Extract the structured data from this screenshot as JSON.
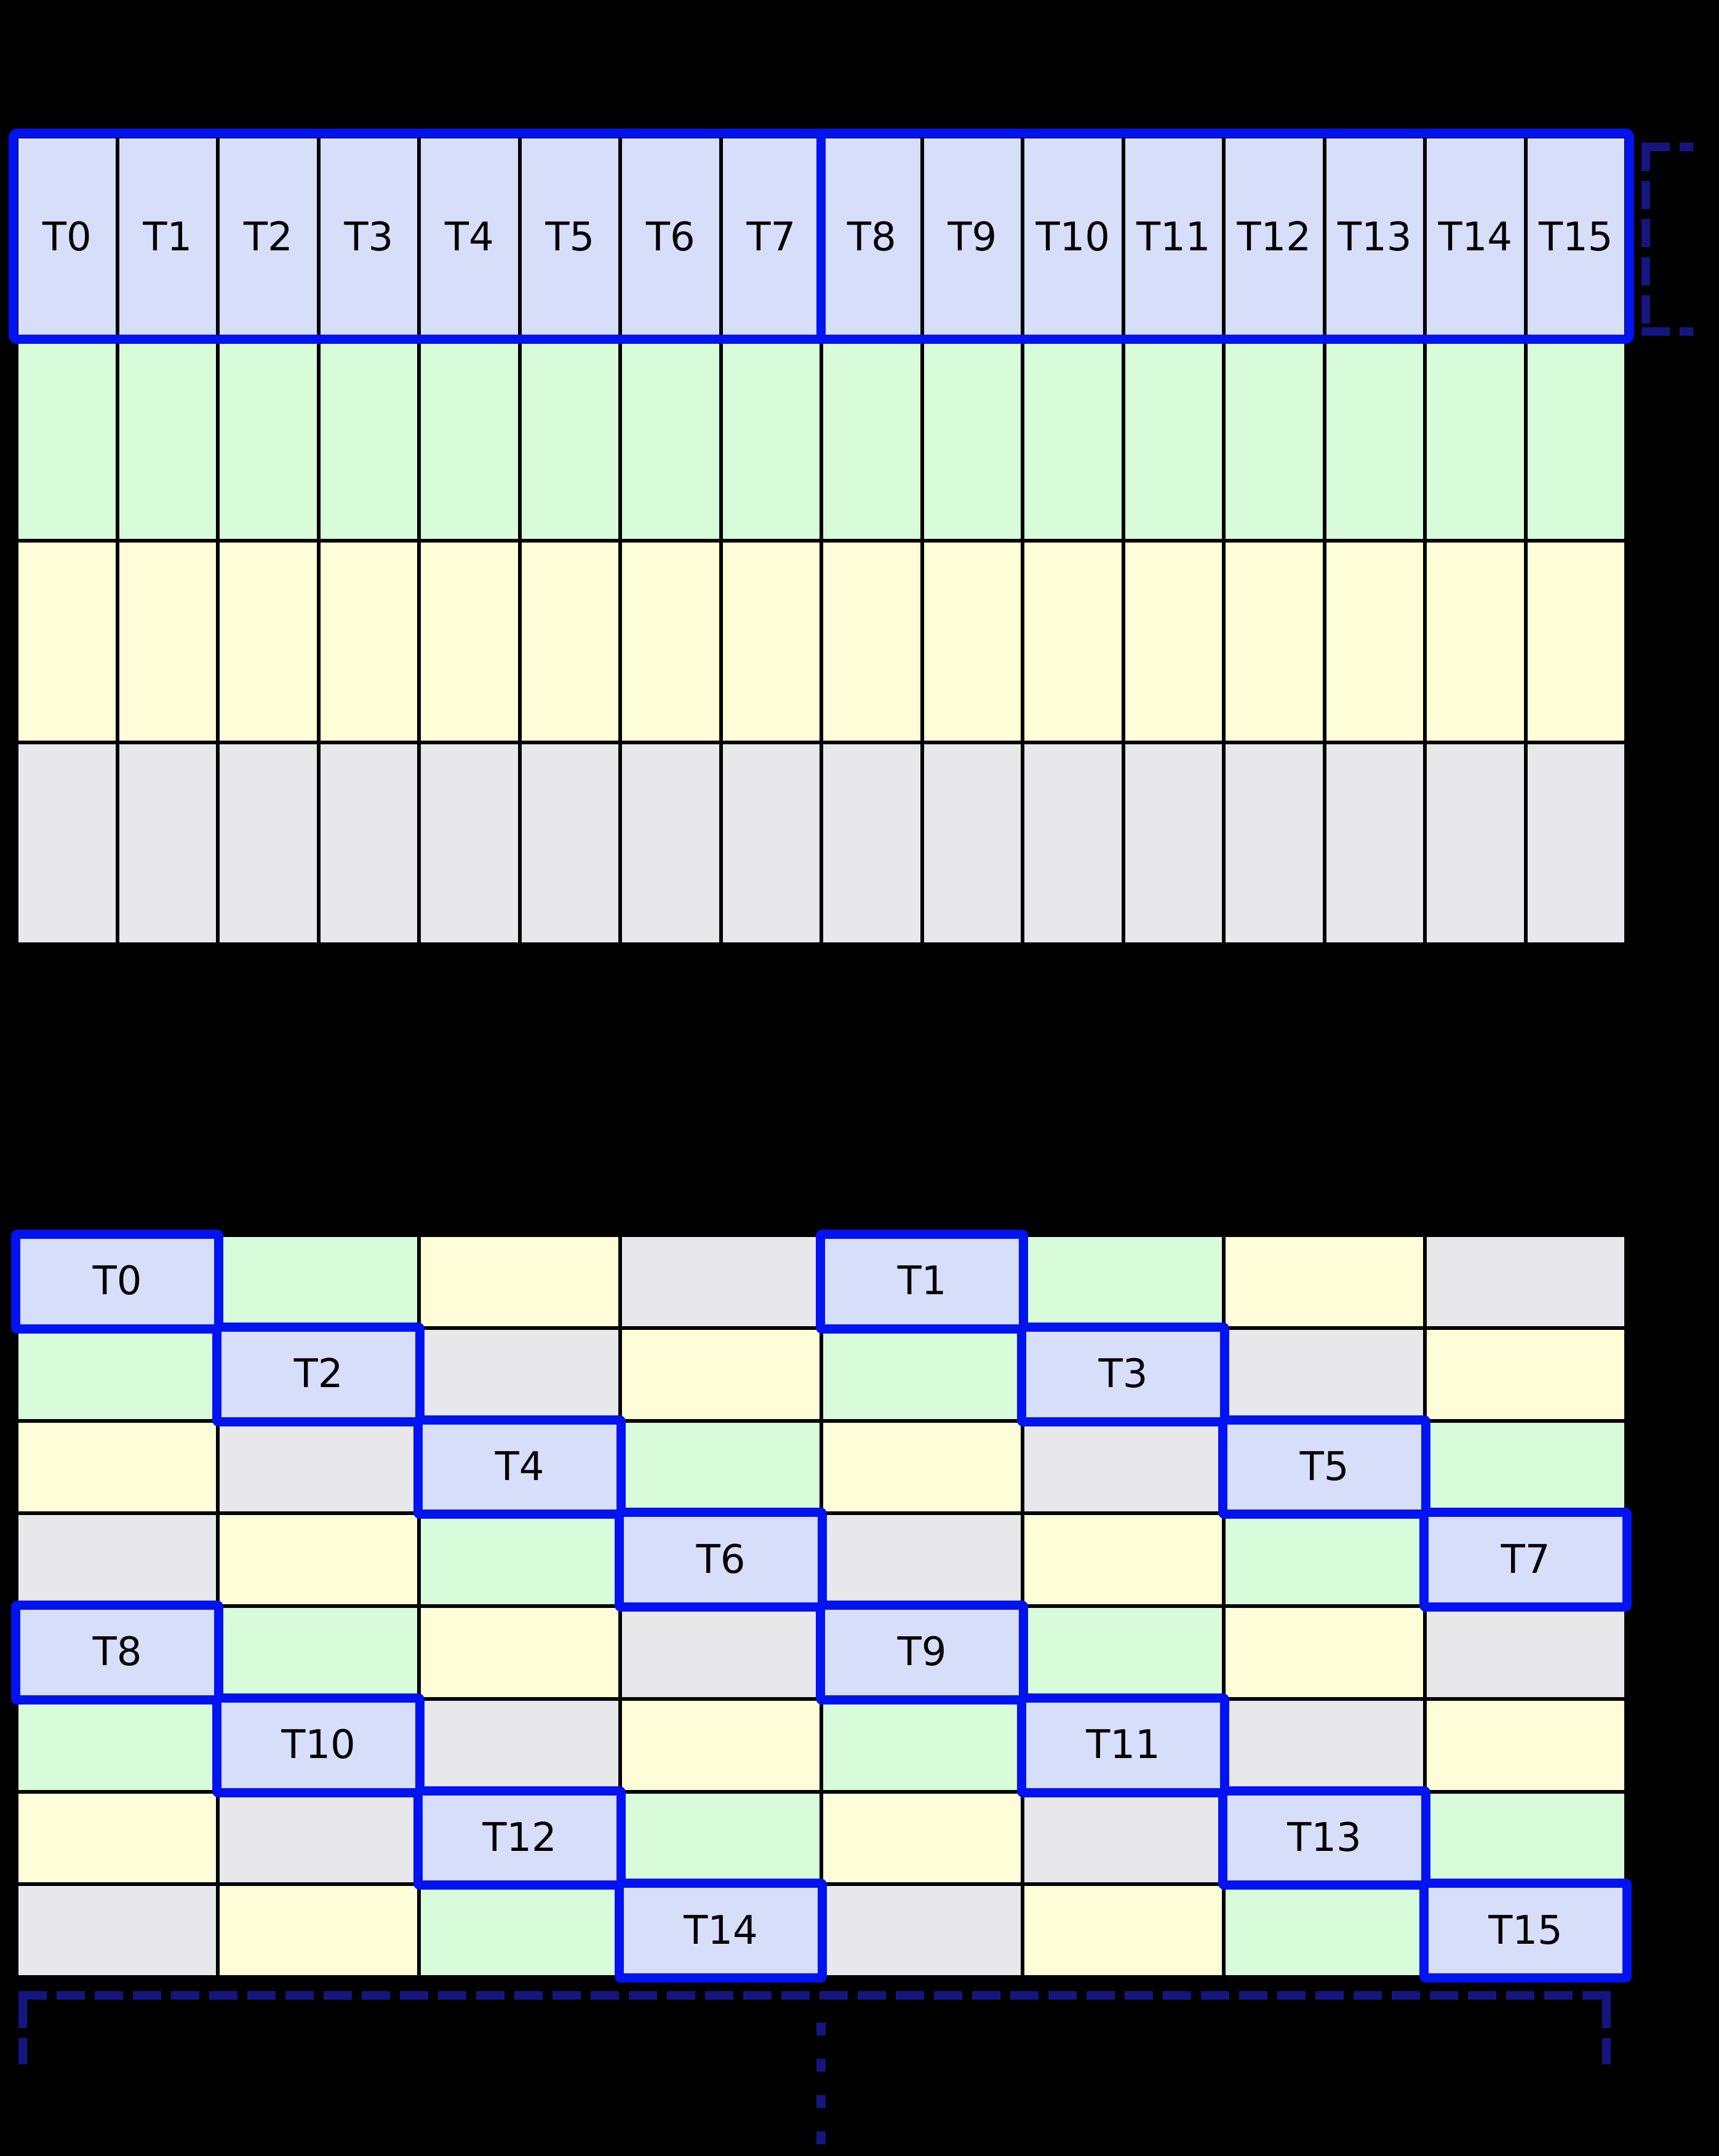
{
  "colors": {
    "background": "#000000",
    "grid_line": "#000000",
    "cell_blue": "#d6def9",
    "cell_green": "#d8fcd9",
    "cell_yellow": "#fdfdd8",
    "cell_gray": "#e8e8ea",
    "highlight_blue": "#0013f0",
    "bracket_navy": "#151580",
    "label_text": "#000000"
  },
  "top_grid": {
    "columns": 16,
    "rows": 4,
    "row_colors": [
      "blue",
      "green",
      "yellow",
      "gray"
    ],
    "thread_labels": [
      "T0",
      "T1",
      "T2",
      "T3",
      "T4",
      "T5",
      "T6",
      "T7",
      "T8",
      "T9",
      "T10",
      "T11",
      "T12",
      "T13",
      "T14",
      "T15"
    ],
    "group_divider_after_column": 8,
    "right_dashed_bracket": true
  },
  "bottom_grid": {
    "columns": 8,
    "rows": 8,
    "cell_colors": [
      [
        "blue",
        "green",
        "yellow",
        "gray",
        "blue",
        "green",
        "yellow",
        "gray"
      ],
      [
        "green",
        "blue",
        "gray",
        "yellow",
        "green",
        "blue",
        "gray",
        "yellow"
      ],
      [
        "yellow",
        "gray",
        "blue",
        "green",
        "yellow",
        "gray",
        "blue",
        "green"
      ],
      [
        "gray",
        "yellow",
        "green",
        "blue",
        "gray",
        "yellow",
        "green",
        "blue"
      ],
      [
        "blue",
        "green",
        "yellow",
        "gray",
        "blue",
        "green",
        "yellow",
        "gray"
      ],
      [
        "green",
        "blue",
        "gray",
        "yellow",
        "green",
        "blue",
        "gray",
        "yellow"
      ],
      [
        "yellow",
        "gray",
        "blue",
        "green",
        "yellow",
        "gray",
        "blue",
        "green"
      ],
      [
        "gray",
        "yellow",
        "green",
        "blue",
        "gray",
        "yellow",
        "green",
        "blue"
      ]
    ],
    "thread_cells": [
      {
        "row": 0,
        "col": 0,
        "label": "T0"
      },
      {
        "row": 0,
        "col": 4,
        "label": "T1"
      },
      {
        "row": 1,
        "col": 1,
        "label": "T2"
      },
      {
        "row": 1,
        "col": 5,
        "label": "T3"
      },
      {
        "row": 2,
        "col": 2,
        "label": "T4"
      },
      {
        "row": 2,
        "col": 6,
        "label": "T5"
      },
      {
        "row": 3,
        "col": 3,
        "label": "T6"
      },
      {
        "row": 3,
        "col": 7,
        "label": "T7"
      },
      {
        "row": 4,
        "col": 0,
        "label": "T8"
      },
      {
        "row": 4,
        "col": 4,
        "label": "T9"
      },
      {
        "row": 5,
        "col": 1,
        "label": "T10"
      },
      {
        "row": 5,
        "col": 5,
        "label": "T11"
      },
      {
        "row": 6,
        "col": 2,
        "label": "T12"
      },
      {
        "row": 6,
        "col": 6,
        "label": "T13"
      },
      {
        "row": 7,
        "col": 3,
        "label": "T14"
      },
      {
        "row": 7,
        "col": 7,
        "label": "T15"
      }
    ],
    "bottom_dashed_bracket": true,
    "vertical_ellipsis": true
  }
}
